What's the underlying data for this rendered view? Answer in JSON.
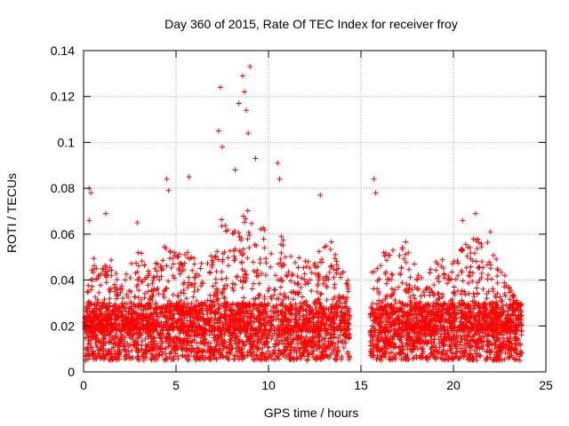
{
  "chart_data": {
    "type": "scatter",
    "title": "Day 360 of 2015, Rate Of TEC Index for receiver froy",
    "xlabel": "GPS time / hours",
    "ylabel": "ROTI / TECUs",
    "xlim": [
      0,
      25
    ],
    "ylim": [
      0,
      0.14
    ],
    "xticks": [
      0,
      5,
      10,
      15,
      20,
      25
    ],
    "yticks": [
      0,
      0.02,
      0.04,
      0.06,
      0.08,
      0.1,
      0.12,
      0.14
    ],
    "grid": true,
    "marker": "+",
    "color": "#ff0000",
    "data_gap_hours": [
      14.4,
      15.5
    ],
    "series": [
      {
        "name": "ROTI",
        "notable_points": [
          {
            "x": 0.3,
            "y": 0.08
          },
          {
            "x": 0.4,
            "y": 0.078
          },
          {
            "x": 0.3,
            "y": 0.066
          },
          {
            "x": 1.2,
            "y": 0.069
          },
          {
            "x": 2.9,
            "y": 0.065
          },
          {
            "x": 4.5,
            "y": 0.084
          },
          {
            "x": 4.6,
            "y": 0.079
          },
          {
            "x": 5.7,
            "y": 0.085
          },
          {
            "x": 7.4,
            "y": 0.124
          },
          {
            "x": 7.3,
            "y": 0.105
          },
          {
            "x": 7.5,
            "y": 0.098
          },
          {
            "x": 8.4,
            "y": 0.117
          },
          {
            "x": 8.6,
            "y": 0.129
          },
          {
            "x": 8.7,
            "y": 0.122
          },
          {
            "x": 8.8,
            "y": 0.114
          },
          {
            "x": 9.0,
            "y": 0.133
          },
          {
            "x": 8.9,
            "y": 0.104
          },
          {
            "x": 9.3,
            "y": 0.093
          },
          {
            "x": 8.2,
            "y": 0.088
          },
          {
            "x": 10.5,
            "y": 0.091
          },
          {
            "x": 10.6,
            "y": 0.084
          },
          {
            "x": 12.8,
            "y": 0.077
          },
          {
            "x": 15.7,
            "y": 0.084
          },
          {
            "x": 15.8,
            "y": 0.078
          },
          {
            "x": 20.5,
            "y": 0.066
          },
          {
            "x": 21.2,
            "y": 0.069
          },
          {
            "x": 22.0,
            "y": 0.061
          }
        ],
        "activity_envelope": [
          {
            "x": 0.0,
            "y": 0.03
          },
          {
            "x": 0.5,
            "y": 0.05
          },
          {
            "x": 1.0,
            "y": 0.045
          },
          {
            "x": 1.5,
            "y": 0.05
          },
          {
            "x": 2.0,
            "y": 0.038
          },
          {
            "x": 2.5,
            "y": 0.046
          },
          {
            "x": 3.0,
            "y": 0.055
          },
          {
            "x": 3.5,
            "y": 0.048
          },
          {
            "x": 4.0,
            "y": 0.05
          },
          {
            "x": 4.5,
            "y": 0.058
          },
          {
            "x": 5.0,
            "y": 0.052
          },
          {
            "x": 5.5,
            "y": 0.055
          },
          {
            "x": 6.0,
            "y": 0.05
          },
          {
            "x": 6.5,
            "y": 0.048
          },
          {
            "x": 7.0,
            "y": 0.053
          },
          {
            "x": 7.5,
            "y": 0.068
          },
          {
            "x": 8.0,
            "y": 0.06
          },
          {
            "x": 8.5,
            "y": 0.072
          },
          {
            "x": 9.0,
            "y": 0.075
          },
          {
            "x": 9.5,
            "y": 0.065
          },
          {
            "x": 10.0,
            "y": 0.06
          },
          {
            "x": 10.5,
            "y": 0.062
          },
          {
            "x": 11.0,
            "y": 0.055
          },
          {
            "x": 11.5,
            "y": 0.052
          },
          {
            "x": 12.0,
            "y": 0.05
          },
          {
            "x": 12.5,
            "y": 0.052
          },
          {
            "x": 13.0,
            "y": 0.055
          },
          {
            "x": 13.5,
            "y": 0.058
          },
          {
            "x": 14.0,
            "y": 0.05
          },
          {
            "x": 14.3,
            "y": 0.04
          },
          {
            "x": 15.6,
            "y": 0.05
          },
          {
            "x": 16.0,
            "y": 0.052
          },
          {
            "x": 16.5,
            "y": 0.055
          },
          {
            "x": 17.0,
            "y": 0.052
          },
          {
            "x": 17.5,
            "y": 0.058
          },
          {
            "x": 18.0,
            "y": 0.045
          },
          {
            "x": 18.5,
            "y": 0.042
          },
          {
            "x": 19.0,
            "y": 0.048
          },
          {
            "x": 19.5,
            "y": 0.05
          },
          {
            "x": 20.0,
            "y": 0.05
          },
          {
            "x": 20.5,
            "y": 0.055
          },
          {
            "x": 21.0,
            "y": 0.058
          },
          {
            "x": 21.5,
            "y": 0.06
          },
          {
            "x": 22.0,
            "y": 0.055
          },
          {
            "x": 22.5,
            "y": 0.048
          },
          {
            "x": 23.0,
            "y": 0.038
          },
          {
            "x": 23.5,
            "y": 0.03
          }
        ],
        "baseline_range": [
          0.005,
          0.03
        ]
      }
    ]
  }
}
